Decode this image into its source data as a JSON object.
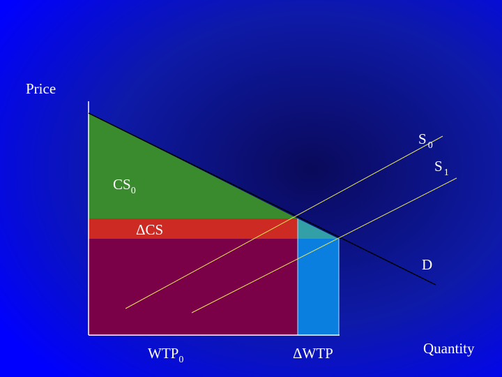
{
  "labels": {
    "price": "Price",
    "quantity": "Quantity",
    "s0": {
      "main": "S",
      "sub": "0"
    },
    "s1": {
      "main": "S",
      "sub": "1"
    },
    "cs0": {
      "main": "CS",
      "sub": "0"
    },
    "delta_cs": "ΔCS",
    "demand": "D",
    "wtp0": {
      "main": "WTP",
      "sub": "0"
    },
    "delta_wtp": "ΔWTP"
  }
}
